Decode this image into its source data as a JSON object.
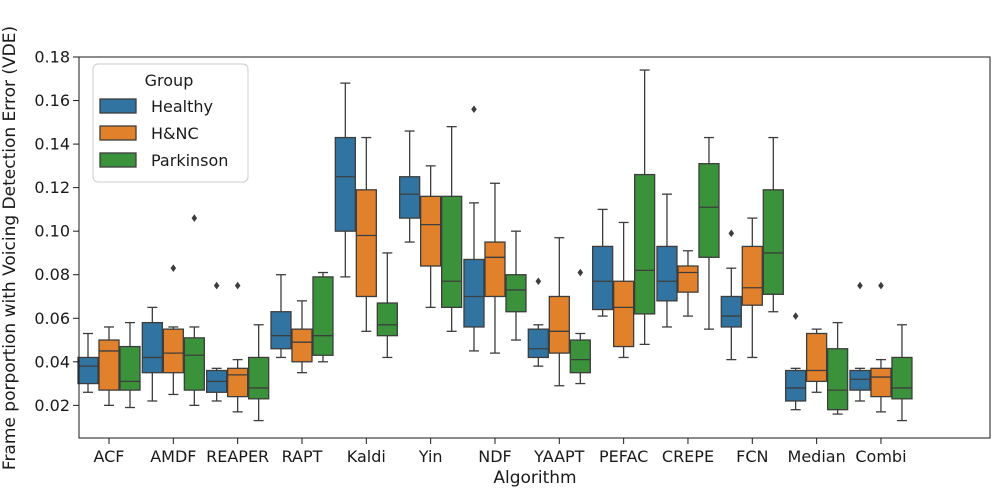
{
  "chart_data": {
    "type": "boxplot",
    "xlabel": "Algorithm",
    "ylabel": "Frame porportion with Voicing Detection Error (VDE)",
    "ylim": [
      0.005,
      0.18
    ],
    "yticks": [
      "0.02",
      "0.04",
      "0.06",
      "0.08",
      "0.10",
      "0.12",
      "0.14",
      "0.16",
      "0.18"
    ],
    "grid": false,
    "legend": {
      "title": "Group",
      "placement": "top-left"
    },
    "categories": [
      "ACF",
      "AMDF",
      "REAPER",
      "RAPT",
      "Kaldi",
      "Yin",
      "NDF",
      "YAAPT",
      "PEFAC",
      "CREPE",
      "FCN",
      "Median",
      "Combi"
    ],
    "series": [
      {
        "name": "Healthy",
        "color": "#3274a1",
        "boxes": [
          {
            "wlo": 0.026,
            "q1": 0.03,
            "med": 0.038,
            "q3": 0.042,
            "whi": 0.053,
            "fliers": []
          },
          {
            "wlo": 0.022,
            "q1": 0.035,
            "med": 0.042,
            "q3": 0.058,
            "whi": 0.065,
            "fliers": []
          },
          {
            "wlo": 0.022,
            "q1": 0.026,
            "med": 0.031,
            "q3": 0.036,
            "whi": 0.037,
            "fliers": [
              0.075
            ]
          },
          {
            "wlo": 0.042,
            "q1": 0.046,
            "med": 0.052,
            "q3": 0.063,
            "whi": 0.08,
            "fliers": []
          },
          {
            "wlo": 0.079,
            "q1": 0.1,
            "med": 0.125,
            "q3": 0.143,
            "whi": 0.168,
            "fliers": []
          },
          {
            "wlo": 0.095,
            "q1": 0.106,
            "med": 0.117,
            "q3": 0.125,
            "whi": 0.146,
            "fliers": []
          },
          {
            "wlo": 0.045,
            "q1": 0.056,
            "med": 0.07,
            "q3": 0.087,
            "whi": 0.113,
            "fliers": [
              0.156
            ]
          },
          {
            "wlo": 0.038,
            "q1": 0.042,
            "med": 0.046,
            "q3": 0.055,
            "whi": 0.057,
            "fliers": [
              0.077
            ]
          },
          {
            "wlo": 0.061,
            "q1": 0.064,
            "med": 0.077,
            "q3": 0.093,
            "whi": 0.11,
            "fliers": []
          },
          {
            "wlo": 0.056,
            "q1": 0.068,
            "med": 0.077,
            "q3": 0.093,
            "whi": 0.117,
            "fliers": []
          },
          {
            "wlo": 0.041,
            "q1": 0.056,
            "med": 0.061,
            "q3": 0.07,
            "whi": 0.083,
            "fliers": [
              0.099
            ]
          },
          {
            "wlo": 0.018,
            "q1": 0.022,
            "med": 0.028,
            "q3": 0.036,
            "whi": 0.037,
            "fliers": [
              0.061
            ]
          },
          {
            "wlo": 0.022,
            "q1": 0.027,
            "med": 0.032,
            "q3": 0.036,
            "whi": 0.037,
            "fliers": [
              0.075
            ]
          }
        ]
      },
      {
        "name": "H&NC",
        "color": "#e1812c",
        "boxes": [
          {
            "wlo": 0.02,
            "q1": 0.027,
            "med": 0.045,
            "q3": 0.05,
            "whi": 0.056,
            "fliers": []
          },
          {
            "wlo": 0.025,
            "q1": 0.035,
            "med": 0.044,
            "q3": 0.055,
            "whi": 0.056,
            "fliers": [
              0.083
            ]
          },
          {
            "wlo": 0.017,
            "q1": 0.024,
            "med": 0.034,
            "q3": 0.037,
            "whi": 0.041,
            "fliers": [
              0.075
            ]
          },
          {
            "wlo": 0.035,
            "q1": 0.04,
            "med": 0.049,
            "q3": 0.055,
            "whi": 0.068,
            "fliers": []
          },
          {
            "wlo": 0.054,
            "q1": 0.07,
            "med": 0.098,
            "q3": 0.119,
            "whi": 0.143,
            "fliers": []
          },
          {
            "wlo": 0.065,
            "q1": 0.084,
            "med": 0.103,
            "q3": 0.116,
            "whi": 0.13,
            "fliers": []
          },
          {
            "wlo": 0.044,
            "q1": 0.07,
            "med": 0.088,
            "q3": 0.095,
            "whi": 0.122,
            "fliers": []
          },
          {
            "wlo": 0.029,
            "q1": 0.044,
            "med": 0.054,
            "q3": 0.07,
            "whi": 0.097,
            "fliers": []
          },
          {
            "wlo": 0.042,
            "q1": 0.047,
            "med": 0.065,
            "q3": 0.077,
            "whi": 0.104,
            "fliers": []
          },
          {
            "wlo": 0.061,
            "q1": 0.072,
            "med": 0.081,
            "q3": 0.084,
            "whi": 0.091,
            "fliers": []
          },
          {
            "wlo": 0.042,
            "q1": 0.066,
            "med": 0.074,
            "q3": 0.093,
            "whi": 0.106,
            "fliers": []
          },
          {
            "wlo": 0.026,
            "q1": 0.031,
            "med": 0.036,
            "q3": 0.053,
            "whi": 0.055,
            "fliers": []
          },
          {
            "wlo": 0.017,
            "q1": 0.024,
            "med": 0.033,
            "q3": 0.037,
            "whi": 0.041,
            "fliers": [
              0.075
            ]
          }
        ]
      },
      {
        "name": "Parkinson",
        "color": "#3a923a",
        "boxes": [
          {
            "wlo": 0.019,
            "q1": 0.027,
            "med": 0.031,
            "q3": 0.047,
            "whi": 0.058,
            "fliers": []
          },
          {
            "wlo": 0.02,
            "q1": 0.027,
            "med": 0.043,
            "q3": 0.051,
            "whi": 0.056,
            "fliers": [
              0.106
            ]
          },
          {
            "wlo": 0.013,
            "q1": 0.023,
            "med": 0.028,
            "q3": 0.042,
            "whi": 0.057,
            "fliers": []
          },
          {
            "wlo": 0.04,
            "q1": 0.043,
            "med": 0.052,
            "q3": 0.079,
            "whi": 0.081,
            "fliers": []
          },
          {
            "wlo": 0.042,
            "q1": 0.052,
            "med": 0.057,
            "q3": 0.067,
            "whi": 0.09,
            "fliers": []
          },
          {
            "wlo": 0.054,
            "q1": 0.065,
            "med": 0.077,
            "q3": 0.116,
            "whi": 0.148,
            "fliers": []
          },
          {
            "wlo": 0.05,
            "q1": 0.063,
            "med": 0.073,
            "q3": 0.08,
            "whi": 0.1,
            "fliers": []
          },
          {
            "wlo": 0.03,
            "q1": 0.035,
            "med": 0.041,
            "q3": 0.05,
            "whi": 0.053,
            "fliers": [
              0.081
            ]
          },
          {
            "wlo": 0.048,
            "q1": 0.062,
            "med": 0.082,
            "q3": 0.126,
            "whi": 0.174,
            "fliers": []
          },
          {
            "wlo": 0.055,
            "q1": 0.088,
            "med": 0.111,
            "q3": 0.131,
            "whi": 0.143,
            "fliers": []
          },
          {
            "wlo": 0.063,
            "q1": 0.071,
            "med": 0.09,
            "q3": 0.119,
            "whi": 0.143,
            "fliers": []
          },
          {
            "wlo": 0.016,
            "q1": 0.018,
            "med": 0.027,
            "q3": 0.046,
            "whi": 0.058,
            "fliers": []
          },
          {
            "wlo": 0.013,
            "q1": 0.023,
            "med": 0.028,
            "q3": 0.042,
            "whi": 0.057,
            "fliers": []
          }
        ]
      }
    ]
  }
}
